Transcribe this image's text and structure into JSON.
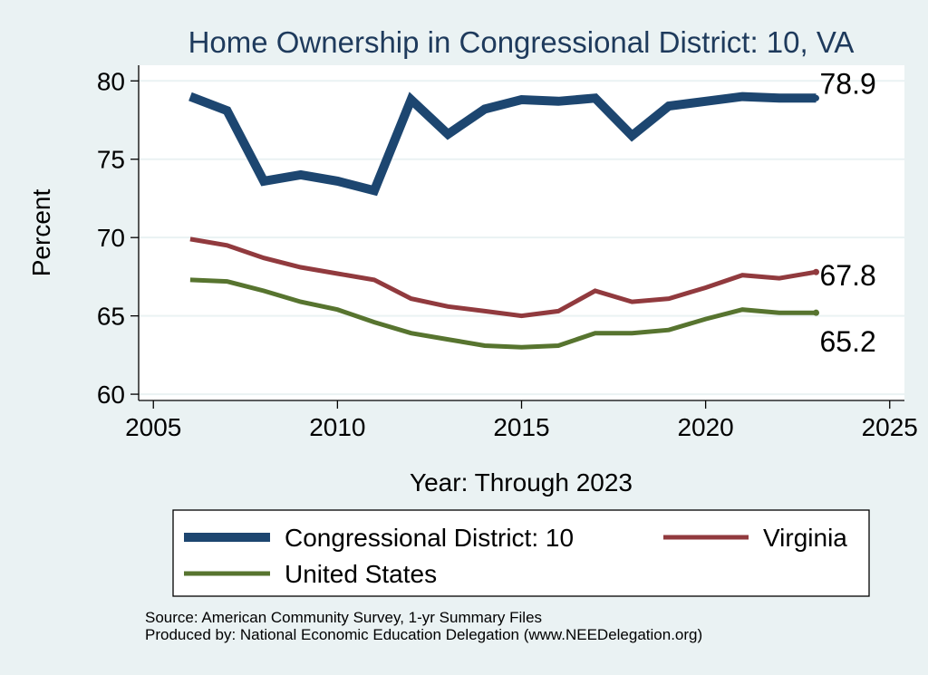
{
  "chart_data": {
    "type": "line",
    "title": "Home Ownership in Congressional District:  10, VA",
    "xlabel": "Year: Through 2023",
    "ylabel": "Percent",
    "xlim": [
      2004.6,
      2025.4
    ],
    "ylim": [
      59.6,
      81
    ],
    "xticks": [
      2005,
      2010,
      2015,
      2020,
      2025
    ],
    "yticks": [
      60,
      65,
      70,
      75,
      80
    ],
    "grid": true,
    "legend_position": "bottom",
    "series": [
      {
        "name": "Congressional District:  10",
        "color": "#1d4670",
        "end_label": "78.9",
        "x": [
          2006,
          2007,
          2008,
          2009,
          2010,
          2011,
          2012,
          2013,
          2014,
          2015,
          2016,
          2017,
          2018,
          2019,
          2020,
          2021,
          2022,
          2023
        ],
        "values": [
          79.0,
          78.1,
          73.6,
          74.0,
          73.6,
          73.0,
          78.8,
          76.6,
          78.2,
          78.8,
          78.7,
          78.9,
          76.5,
          78.4,
          78.7,
          79.0,
          78.9,
          78.9
        ]
      },
      {
        "name": "Virginia",
        "color": "#913a3e",
        "end_label": "67.8",
        "x": [
          2006,
          2007,
          2008,
          2009,
          2010,
          2011,
          2012,
          2013,
          2014,
          2015,
          2016,
          2017,
          2018,
          2019,
          2020,
          2021,
          2022,
          2023
        ],
        "values": [
          69.9,
          69.5,
          68.7,
          68.1,
          67.7,
          67.3,
          66.1,
          65.6,
          65.3,
          65.0,
          65.3,
          66.6,
          65.9,
          66.1,
          66.8,
          67.6,
          67.4,
          67.8
        ]
      },
      {
        "name": "United States",
        "color": "#57742f",
        "end_label": "65.2",
        "x": [
          2006,
          2007,
          2008,
          2009,
          2010,
          2011,
          2012,
          2013,
          2014,
          2015,
          2016,
          2017,
          2018,
          2019,
          2020,
          2021,
          2022,
          2023
        ],
        "values": [
          67.3,
          67.2,
          66.6,
          65.9,
          65.4,
          64.6,
          63.9,
          63.5,
          63.1,
          63.0,
          63.1,
          63.9,
          63.9,
          64.1,
          64.8,
          65.4,
          65.2,
          65.2
        ]
      }
    ]
  },
  "source": {
    "line1": "Source: American Community Survey, 1-yr Summary Files",
    "line2": "Produced by: National Economic Education Delegation (www.NEEDelegation.org)"
  }
}
